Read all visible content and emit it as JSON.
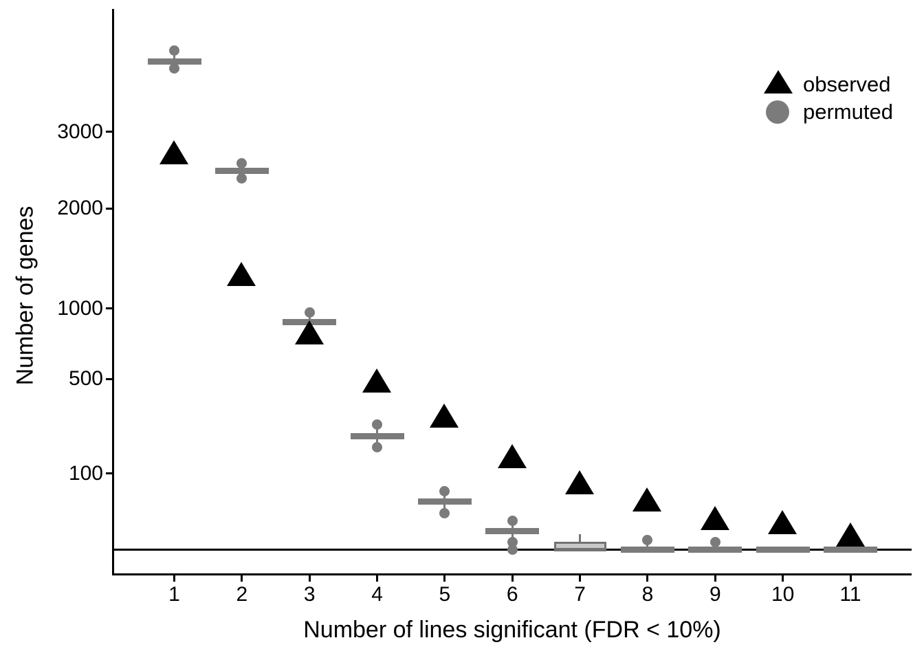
{
  "chart": {
    "y_axis_title": "Number of genes",
    "x_axis_title": "Number of lines significant (FDR < 10%)",
    "y_tick_labels": [
      "3000",
      "2000",
      "1000",
      "500",
      "100"
    ],
    "x_tick_labels": [
      "1",
      "2",
      "3",
      "4",
      "5",
      "6",
      "7",
      "8",
      "9",
      "10",
      "11"
    ]
  },
  "legend": {
    "items": [
      {
        "label": "observed",
        "marker": "triangle-icon",
        "color": "#000000"
      },
      {
        "label": "permuted",
        "marker": "circle-icon",
        "color": "#7b7b7b"
      }
    ]
  },
  "colors": {
    "observed": "#000000",
    "permuted": "#7b7b7b",
    "box_fill": "#c8c8c8",
    "box_border": "#737373",
    "axis": "#000000",
    "reference_line": "#000000",
    "background": "#ffffff"
  },
  "chart_data": {
    "type": "scatter",
    "xlabel": "Number of lines significant (FDR < 10%)",
    "ylabel": "Number of genes",
    "x": [
      1,
      2,
      3,
      4,
      5,
      6,
      7,
      8,
      9,
      10,
      11
    ],
    "y_scale": "sqrt",
    "y_ticks": [
      3000,
      2000,
      1000,
      500,
      100
    ],
    "reference_line_y": 0,
    "grid": false,
    "legend_position": "top-right-inside",
    "series": [
      {
        "name": "observed",
        "type": "point",
        "marker": "triangle",
        "color": "#000000",
        "values": [
          2720,
          1310,
          810,
          490,
          310,
          150,
          78,
          43,
          17,
          13,
          4
        ]
      },
      {
        "name": "permuted",
        "type": "boxplot",
        "marker": "circle",
        "color": "#7b7b7b",
        "medians": [
          4100,
          2470,
          890,
          220,
          40,
          6,
          null,
          0,
          0,
          0,
          0
        ],
        "outliers": [
          [
            4280,
            3980
          ],
          [
            2570,
            2370
          ],
          [
            970
          ],
          [
            270,
            180
          ],
          [
            58,
            23
          ],
          [
            14,
            1,
            0
          ],
          [],
          [
            1.5
          ],
          [
            1
          ],
          [],
          []
        ],
        "boxes": [
          {
            "x": 7,
            "q1": 0,
            "median": 0,
            "q3": 1,
            "whisker_high": 4
          }
        ]
      }
    ]
  }
}
